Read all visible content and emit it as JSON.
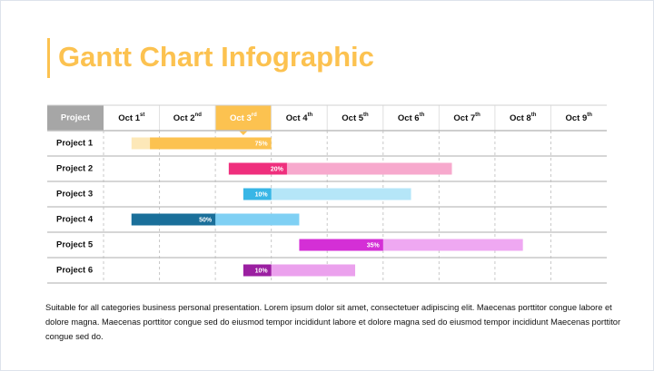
{
  "chart_data": {
    "type": "gantt",
    "title": "Gantt Chart Infographic",
    "header": "Project",
    "dates": [
      {
        "day": "Oct 1",
        "sup": "st"
      },
      {
        "day": "Oct 2",
        "sup": "nd"
      },
      {
        "day": "Oct 3",
        "sup": "rd"
      },
      {
        "day": "Oct 4",
        "sup": "th"
      },
      {
        "day": "Oct 5",
        "sup": "th"
      },
      {
        "day": "Oct 6",
        "sup": "th"
      },
      {
        "day": "Oct 7",
        "sup": "th"
      },
      {
        "day": "Oct 8",
        "sup": "th"
      },
      {
        "day": "Oct 9",
        "sup": "th"
      }
    ],
    "highlight_column": 2,
    "xlim": [
      0,
      9
    ],
    "rows": [
      {
        "name": "Project 1",
        "plan": [
          0.5,
          3.0
        ],
        "done": [
          0.83,
          3.0
        ],
        "value": 75,
        "value_label": "75%",
        "color": "#fcc250",
        "light": "#fde8b8"
      },
      {
        "name": "Project 2",
        "plan": [
          2.24,
          6.23
        ],
        "done": [
          2.24,
          3.28
        ],
        "value": 20,
        "value_label": "20%",
        "color": "#ef2f7d",
        "light": "#f7a9cd"
      },
      {
        "name": "Project 3",
        "plan": [
          2.5,
          5.5
        ],
        "done": [
          2.5,
          3.0
        ],
        "value": 10,
        "value_label": "10%",
        "color": "#38b6e6",
        "light": "#b5e6f8"
      },
      {
        "name": "Project 4",
        "plan": [
          0.5,
          3.5
        ],
        "done": [
          0.5,
          2.0
        ],
        "value": 50,
        "value_label": "50%",
        "color": "#1a6f9a",
        "light": "#7fd0f4"
      },
      {
        "name": "Project 5",
        "plan": [
          3.5,
          7.5
        ],
        "done": [
          3.5,
          5.0
        ],
        "value": 35,
        "value_label": "35%",
        "color": "#d42fd6",
        "light": "#efa8f2"
      },
      {
        "name": "Project 6",
        "plan": [
          2.5,
          4.5
        ],
        "done": [
          2.5,
          3.0
        ],
        "value": 10,
        "value_label": "10%",
        "color": "#9b1fa1",
        "light": "#eba1ed"
      }
    ],
    "description": "Suitable for all categories business personal presentation. Lorem ipsum dolor sit amet, consectetuer adipiscing elit. Maecenas porttitor congue labore et dolore magna. Maecenas porttitor congue sed do eiusmod tempor incididunt labore et dolore magna sed do eiusmod tempor incididunt Maecenas porttitor congue sed do."
  }
}
